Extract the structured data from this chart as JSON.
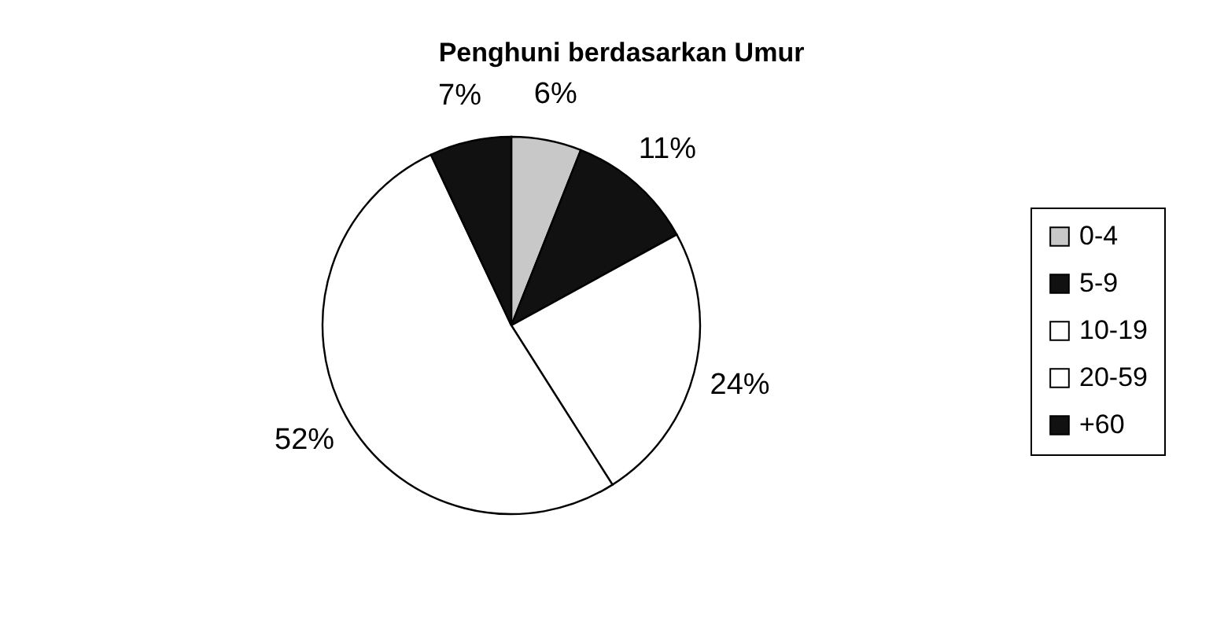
{
  "chart_data": {
    "type": "pie",
    "title": "Penghuni berdasarkan Umur",
    "categories": [
      "0-4",
      "5-9",
      "10-19",
      "20-59",
      "+60"
    ],
    "values": [
      6,
      11,
      24,
      52,
      7
    ],
    "value_labels": [
      "6%",
      "11%",
      "24%",
      "52%",
      "7%"
    ],
    "colors": [
      "#c8c8c8",
      "#111111",
      "#ffffff",
      "#ffffff",
      "#111111"
    ],
    "legend": "right"
  }
}
